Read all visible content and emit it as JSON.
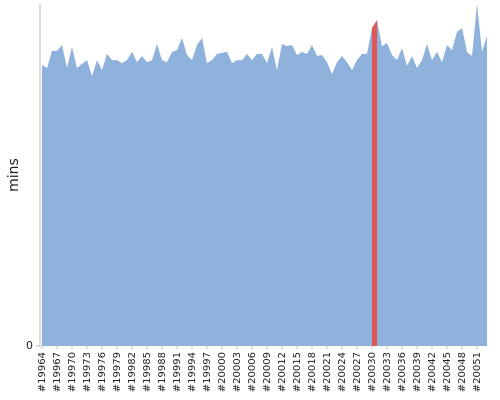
{
  "chart_data": {
    "type": "area",
    "y_label": "mins",
    "color": "#8fb2dc",
    "highlight": {
      "x": [
        20030,
        20031
      ],
      "color": "#e05555"
    },
    "x": [
      19964,
      19965,
      19966,
      19967,
      19968,
      19969,
      19970,
      19971,
      19972,
      19973,
      19974,
      19975,
      19976,
      19977,
      19978,
      19979,
      19980,
      19981,
      19982,
      19983,
      19984,
      19985,
      19986,
      19987,
      19988,
      19989,
      19990,
      19991,
      19992,
      19993,
      19994,
      19995,
      19996,
      19997,
      19998,
      19999,
      20000,
      20001,
      20002,
      20003,
      20004,
      20005,
      20006,
      20007,
      20008,
      20009,
      20010,
      20011,
      20012,
      20013,
      20014,
      20015,
      20016,
      20017,
      20018,
      20019,
      20020,
      20021,
      20022,
      20023,
      20024,
      20025,
      20026,
      20027,
      20028,
      20029,
      20030,
      20031,
      20032,
      20033,
      20034,
      20035,
      20036,
      20037,
      20038,
      20039,
      20040,
      20041,
      20042,
      20043,
      20044,
      20045,
      20046,
      20047,
      20048,
      20049,
      20050,
      20051,
      20052,
      20053
    ],
    "values": [
      82.2,
      81.3,
      86.3,
      86.3,
      88.0,
      81.3,
      87.4,
      81.3,
      82.5,
      83.6,
      78.9,
      83.6,
      80.7,
      85.4,
      83.6,
      83.6,
      82.7,
      83.6,
      86.0,
      83.0,
      84.8,
      83.0,
      83.6,
      88.3,
      83.6,
      83.0,
      86.0,
      86.5,
      90.1,
      85.1,
      83.6,
      88.0,
      90.1,
      82.7,
      83.6,
      85.4,
      85.7,
      86.0,
      82.7,
      83.6,
      83.6,
      85.4,
      83.6,
      85.4,
      85.4,
      82.7,
      87.4,
      80.7,
      88.3,
      87.7,
      88.0,
      85.1,
      86.0,
      85.4,
      88.0,
      84.8,
      85.1,
      83.0,
      79.5,
      83.0,
      84.8,
      83.0,
      80.7,
      83.6,
      85.4,
      85.4,
      93.0,
      95.3,
      87.7,
      88.6,
      85.1,
      83.6,
      87.1,
      81.9,
      84.8,
      81.3,
      83.6,
      88.3,
      83.6,
      86.0,
      83.0,
      88.0,
      86.5,
      91.8,
      93.0,
      86.0,
      84.8,
      100,
      86.0,
      90.6
    ],
    "xlim": [
      19964,
      20053
    ],
    "ylim": [
      0,
      100
    ],
    "yticks": [
      0
    ],
    "xticks": [
      {
        "value": 19964,
        "label": "#19964"
      },
      {
        "value": 19967,
        "label": "#19967"
      },
      {
        "value": 19970,
        "label": "#19970"
      },
      {
        "value": 19973,
        "label": "#19973"
      },
      {
        "value": 19976,
        "label": "#19976"
      },
      {
        "value": 19979,
        "label": "#19979"
      },
      {
        "value": 19982,
        "label": "#19982"
      },
      {
        "value": 19985,
        "label": "#19985"
      },
      {
        "value": 19988,
        "label": "#19988"
      },
      {
        "value": 19991,
        "label": "#19991"
      },
      {
        "value": 19994,
        "label": "#19994"
      },
      {
        "value": 19997,
        "label": "#19997"
      },
      {
        "value": 20000,
        "label": "#20000"
      },
      {
        "value": 20003,
        "label": "#20003"
      },
      {
        "value": 20006,
        "label": "#20006"
      },
      {
        "value": 20009,
        "label": "#20009"
      },
      {
        "value": 20012,
        "label": "#20012"
      },
      {
        "value": 20015,
        "label": "#20015"
      },
      {
        "value": 20018,
        "label": "#20018"
      },
      {
        "value": 20021,
        "label": "#20021"
      },
      {
        "value": 20024,
        "label": "#20024"
      },
      {
        "value": 20027,
        "label": "#20027"
      },
      {
        "value": 20030,
        "label": "#20030"
      },
      {
        "value": 20033,
        "label": "#20033"
      },
      {
        "value": 20036,
        "label": "#20036"
      },
      {
        "value": 20039,
        "label": "#20039"
      },
      {
        "value": 20042,
        "label": "#20042"
      },
      {
        "value": 20045,
        "label": "#20045"
      },
      {
        "value": 20048,
        "label": "#20048"
      },
      {
        "value": 20051,
        "label": "#20051"
      }
    ]
  }
}
